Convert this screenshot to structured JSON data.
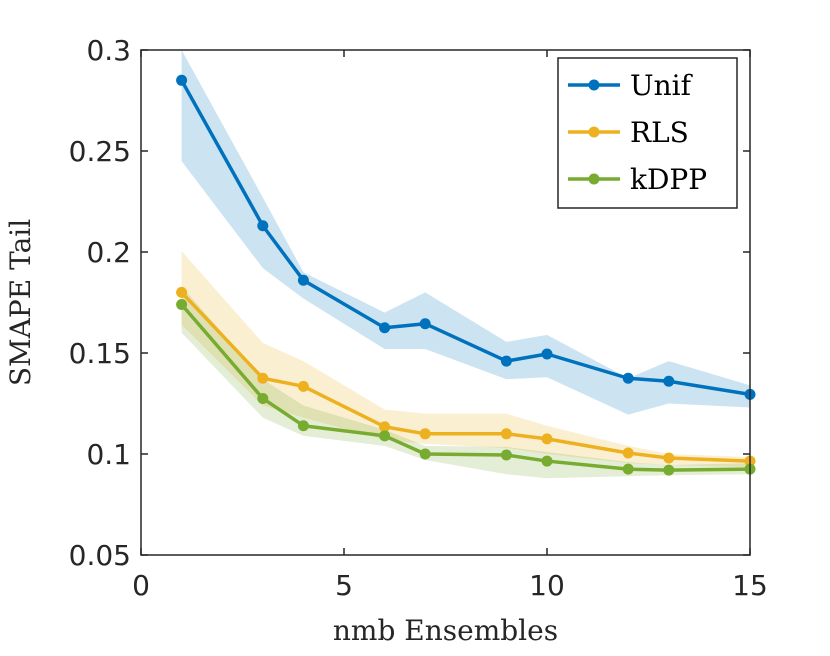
{
  "chart_data": {
    "type": "line",
    "title": "",
    "xlabel": "nmb Ensembles",
    "ylabel": "SMAPE Tail",
    "xlim": [
      0,
      15
    ],
    "ylim": [
      0.05,
      0.3
    ],
    "xticks": [
      0,
      5,
      10,
      15
    ],
    "xtick_labels": [
      "0",
      "5",
      "10",
      "15"
    ],
    "yticks": [
      0.05,
      0.1,
      0.15,
      0.2,
      0.25,
      0.3
    ],
    "ytick_labels": [
      "0.05",
      "0.1",
      "0.15",
      "0.2",
      "0.25",
      "0.3"
    ],
    "grid": false,
    "legend_position": "top-right",
    "x": [
      1,
      3,
      4,
      6,
      7,
      9,
      10,
      12,
      13,
      15
    ],
    "series": [
      {
        "name": "Unif",
        "color": "#0072BD",
        "band_color": "#0072BD",
        "values": [
          0.285,
          0.213,
          0.186,
          0.1625,
          0.1645,
          0.146,
          0.1495,
          0.1375,
          0.136,
          0.1295
        ],
        "lower": [
          0.245,
          0.192,
          0.177,
          0.152,
          0.152,
          0.137,
          0.138,
          0.1195,
          0.125,
          0.123
        ],
        "upper": [
          0.3,
          0.227,
          0.19,
          0.17,
          0.18,
          0.1555,
          0.159,
          0.1375,
          0.146,
          0.134
        ]
      },
      {
        "name": "RLS",
        "color": "#EDB120",
        "band_color": "#EDB120",
        "values": [
          0.18,
          0.1375,
          0.1335,
          0.1135,
          0.11,
          0.11,
          0.1075,
          0.1005,
          0.098,
          0.0965
        ],
        "lower": [
          0.164,
          0.124,
          0.118,
          0.107,
          0.105,
          0.103,
          0.1,
          0.0955,
          0.0945,
          0.0935
        ],
        "upper": [
          0.2005,
          0.155,
          0.146,
          0.122,
          0.12,
          0.12,
          0.114,
          0.104,
          0.1,
          0.0985
        ]
      },
      {
        "name": "kDPP",
        "color": "#77AC30",
        "band_color": "#77AC30",
        "values": [
          0.174,
          0.1275,
          0.114,
          0.109,
          0.1,
          0.0995,
          0.0965,
          0.0925,
          0.092,
          0.0925
        ],
        "lower": [
          0.16,
          0.118,
          0.109,
          0.104,
          0.097,
          0.09,
          0.088,
          0.089,
          0.0895,
          0.09
        ],
        "upper": [
          0.183,
          0.137,
          0.124,
          0.112,
          0.104,
          0.1035,
          0.101,
          0.096,
          0.0945,
          0.0955
        ]
      }
    ]
  }
}
